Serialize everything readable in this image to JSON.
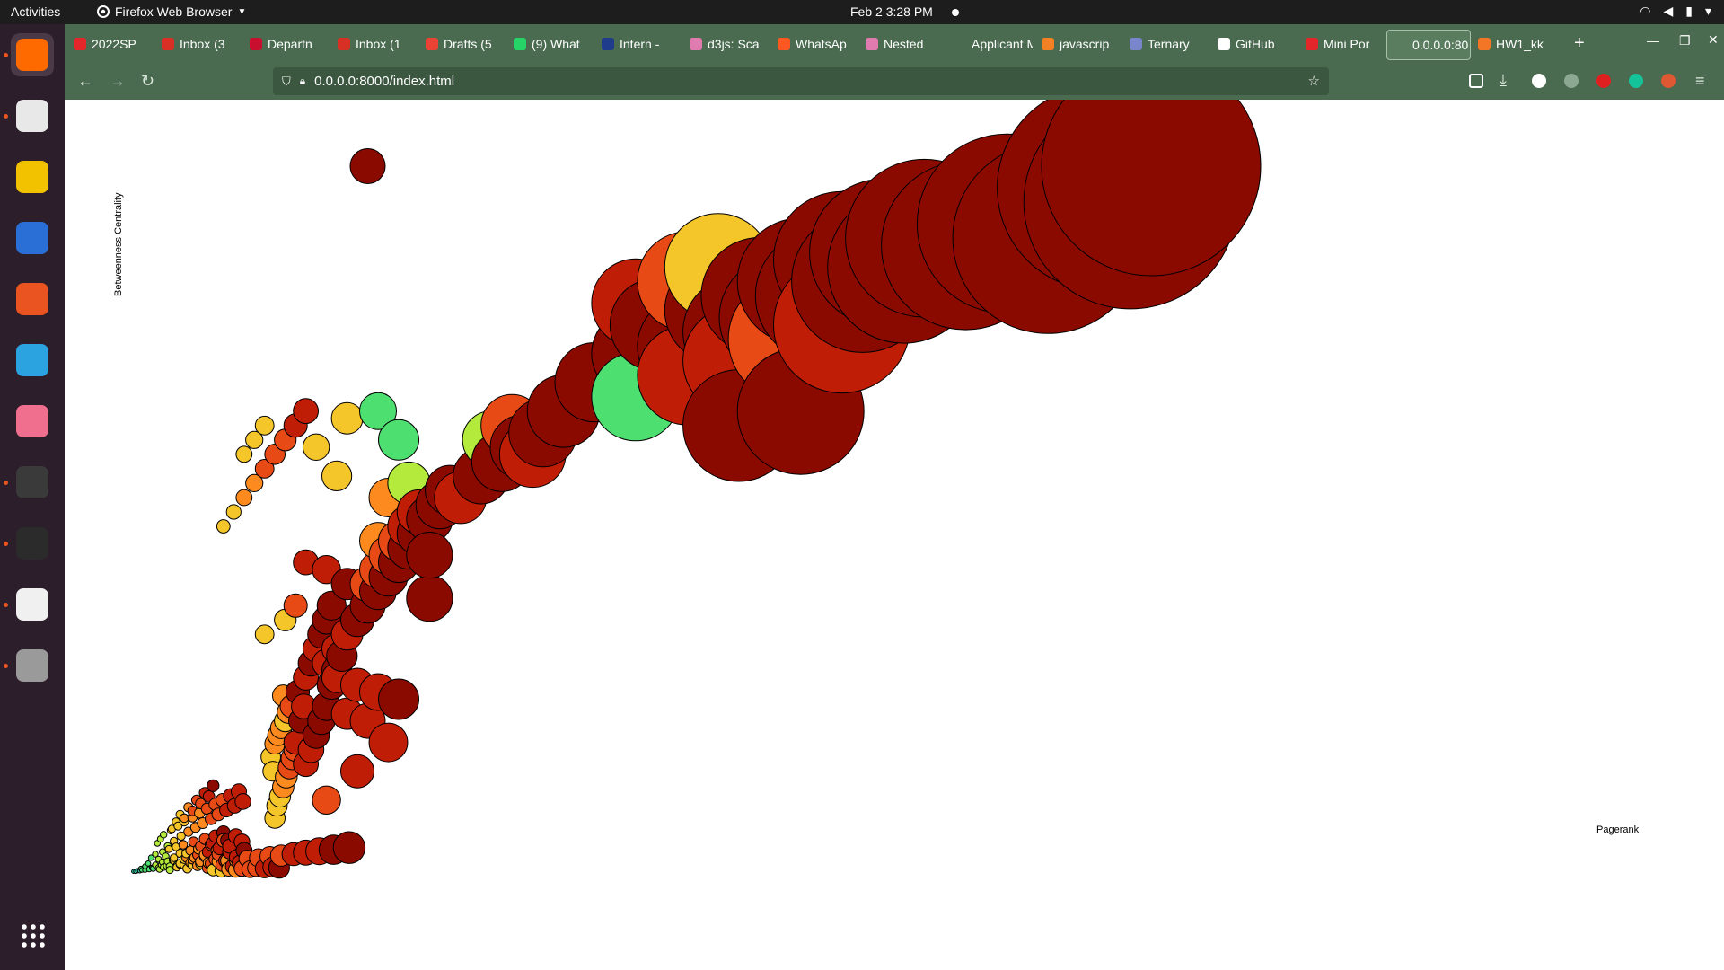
{
  "os_bar": {
    "activities": "Activities",
    "app_name": "Firefox Web Browser",
    "clock": "Feb 2  3:28 PM"
  },
  "dock": {
    "apps": [
      {
        "name": "firefox",
        "color": "#ff6a00",
        "running": true
      },
      {
        "name": "files",
        "color": "#e8e8e8",
        "running": true
      },
      {
        "name": "rhythmbox",
        "color": "#f2c200",
        "running": false
      },
      {
        "name": "writer",
        "color": "#2a6fd6",
        "running": false
      },
      {
        "name": "app-center",
        "color": "#e95420",
        "running": false
      },
      {
        "name": "telegram",
        "color": "#2aa3e0",
        "running": false
      },
      {
        "name": "chart-app",
        "color": "#f06f8e",
        "running": false
      },
      {
        "name": "sublime-text",
        "color": "#3a3a3a",
        "running": true
      },
      {
        "name": "terminal",
        "color": "#2b2b2b",
        "running": true
      },
      {
        "name": "document-viewer",
        "color": "#f0f0f0",
        "running": true
      },
      {
        "name": "disc",
        "color": "#9a9a9a",
        "running": true
      }
    ]
  },
  "browser": {
    "tabs": [
      {
        "label": "2022SP",
        "color": "#e3262a"
      },
      {
        "label": "Inbox (3",
        "color": "#d93025"
      },
      {
        "label": "Departn",
        "color": "#c8102e"
      },
      {
        "label": "Inbox (1",
        "color": "#d93025"
      },
      {
        "label": "Drafts (5",
        "color": "#ea4335"
      },
      {
        "label": "(9) What",
        "color": "#25d366"
      },
      {
        "label": "Intern - ",
        "color": "#1f3b8c"
      },
      {
        "label": "d3js: Sca",
        "color": "#e07bb0"
      },
      {
        "label": "WhatsAp",
        "color": "#ff5722"
      },
      {
        "label": "Nested ",
        "color": "#e07bb0"
      },
      {
        "label": "Applicant M",
        "color": "#4a6b50"
      },
      {
        "label": "javascrip",
        "color": "#f48024"
      },
      {
        "label": "Ternary",
        "color": "#7986cb"
      },
      {
        "label": "GitHub",
        "color": "#ffffff"
      },
      {
        "label": "Mini Por",
        "color": "#e3262a"
      },
      {
        "label": "0.0.0.0:80",
        "color": "#5a7d60"
      },
      {
        "label": "HW1_kk",
        "color": "#f37626"
      }
    ],
    "url": "0.0.0.0:8000/index.html"
  },
  "chart_data": {
    "type": "scatter",
    "xlabel": "Pagerank",
    "ylabel": "Betweenness Centrality",
    "size_encoding": "pagerank",
    "color_scale": [
      "#1f77b4",
      "#2bc5a6",
      "#4ddf70",
      "#b4ea3c",
      "#f5c62a",
      "#fd8a1e",
      "#e84a16",
      "#bf1d05",
      "#8b0a00"
    ],
    "points": [
      [
        0.013,
        0.001,
        0.11
      ],
      [
        0.015,
        0.001,
        0.13
      ],
      [
        0.017,
        0.002,
        0.15
      ],
      [
        0.019,
        0.002,
        0.18
      ],
      [
        0.021,
        0.003,
        0.2
      ],
      [
        0.024,
        0.003,
        0.23
      ],
      [
        0.028,
        0.004,
        0.26
      ],
      [
        0.032,
        0.005,
        0.29
      ],
      [
        0.037,
        0.006,
        0.33
      ],
      [
        0.042,
        0.007,
        0.36
      ],
      [
        0.048,
        0.008,
        0.4
      ],
      [
        0.055,
        0.009,
        0.43
      ],
      [
        0.062,
        0.01,
        0.47
      ],
      [
        0.07,
        0.011,
        0.5
      ],
      [
        0.078,
        0.012,
        0.53
      ],
      [
        0.086,
        0.013,
        0.57
      ],
      [
        0.095,
        0.015,
        0.61
      ],
      [
        0.104,
        0.016,
        0.64
      ],
      [
        0.113,
        0.017,
        0.67
      ],
      [
        0.123,
        0.019,
        0.71
      ],
      [
        0.134,
        0.02,
        0.74
      ],
      [
        0.145,
        0.022,
        0.78
      ],
      [
        0.156,
        0.023,
        0.81
      ],
      [
        0.168,
        0.025,
        0.85
      ],
      [
        0.18,
        0.027,
        0.88
      ],
      [
        0.193,
        0.029,
        0.92
      ],
      [
        0.207,
        0.031,
        0.95
      ],
      [
        0.222,
        0.034,
        0.98
      ],
      [
        0.09,
        0.003,
        0.5
      ],
      [
        0.098,
        0.002,
        0.55
      ],
      [
        0.105,
        0.004,
        0.6
      ],
      [
        0.112,
        0.003,
        0.65
      ],
      [
        0.118,
        0.005,
        0.7
      ],
      [
        0.126,
        0.004,
        0.75
      ],
      [
        0.132,
        0.006,
        0.8
      ],
      [
        0.14,
        0.005,
        0.85
      ],
      [
        0.148,
        0.007,
        0.9
      ],
      [
        0.154,
        0.006,
        0.95
      ],
      [
        0.02,
        0.005,
        0.2
      ],
      [
        0.024,
        0.008,
        0.22
      ],
      [
        0.027,
        0.012,
        0.25
      ],
      [
        0.031,
        0.006,
        0.3
      ],
      [
        0.034,
        0.01,
        0.32
      ],
      [
        0.038,
        0.004,
        0.35
      ],
      [
        0.041,
        0.014,
        0.38
      ],
      [
        0.045,
        0.009,
        0.4
      ],
      [
        0.048,
        0.003,
        0.42
      ],
      [
        0.052,
        0.016,
        0.45
      ],
      [
        0.055,
        0.007,
        0.47
      ],
      [
        0.058,
        0.011,
        0.5
      ],
      [
        0.062,
        0.018,
        0.52
      ],
      [
        0.065,
        0.005,
        0.55
      ],
      [
        0.068,
        0.013,
        0.57
      ],
      [
        0.072,
        0.02,
        0.6
      ],
      [
        0.075,
        0.009,
        0.62
      ],
      [
        0.078,
        0.015,
        0.65
      ],
      [
        0.082,
        0.022,
        0.67
      ],
      [
        0.085,
        0.006,
        0.7
      ],
      [
        0.088,
        0.012,
        0.72
      ],
      [
        0.092,
        0.018,
        0.75
      ],
      [
        0.095,
        0.025,
        0.78
      ],
      [
        0.099,
        0.01,
        0.8
      ],
      [
        0.102,
        0.016,
        0.83
      ],
      [
        0.106,
        0.028,
        0.86
      ],
      [
        0.109,
        0.008,
        0.88
      ],
      [
        0.113,
        0.021,
        0.9
      ],
      [
        0.116,
        0.013,
        0.93
      ],
      [
        0.12,
        0.03,
        0.96
      ],
      [
        0.03,
        0.02,
        0.3
      ],
      [
        0.034,
        0.025,
        0.33
      ],
      [
        0.037,
        0.018,
        0.36
      ],
      [
        0.041,
        0.028,
        0.4
      ],
      [
        0.044,
        0.022,
        0.43
      ],
      [
        0.047,
        0.032,
        0.46
      ],
      [
        0.051,
        0.017,
        0.5
      ],
      [
        0.054,
        0.035,
        0.53
      ],
      [
        0.058,
        0.026,
        0.56
      ],
      [
        0.061,
        0.038,
        0.6
      ],
      [
        0.064,
        0.02,
        0.63
      ],
      [
        0.068,
        0.03,
        0.66
      ],
      [
        0.071,
        0.042,
        0.7
      ],
      [
        0.075,
        0.024,
        0.73
      ],
      [
        0.078,
        0.036,
        0.76
      ],
      [
        0.082,
        0.046,
        0.8
      ],
      [
        0.085,
        0.028,
        0.83
      ],
      [
        0.089,
        0.04,
        0.86
      ],
      [
        0.092,
        0.05,
        0.9
      ],
      [
        0.096,
        0.033,
        0.93
      ],
      [
        0.1,
        0.055,
        0.96
      ],
      [
        0.104,
        0.044,
        0.98
      ],
      [
        0.036,
        0.04,
        0.35
      ],
      [
        0.039,
        0.046,
        0.38
      ],
      [
        0.042,
        0.052,
        0.4
      ],
      [
        0.046,
        0.036,
        0.43
      ],
      [
        0.049,
        0.058,
        0.45
      ],
      [
        0.052,
        0.043,
        0.48
      ],
      [
        0.056,
        0.064,
        0.5
      ],
      [
        0.059,
        0.05,
        0.53
      ],
      [
        0.062,
        0.07,
        0.55
      ],
      [
        0.066,
        0.056,
        0.58
      ],
      [
        0.07,
        0.076,
        0.6
      ],
      [
        0.073,
        0.062,
        0.63
      ],
      [
        0.077,
        0.082,
        0.65
      ],
      [
        0.08,
        0.068,
        0.68
      ],
      [
        0.084,
        0.088,
        0.7
      ],
      [
        0.088,
        0.074,
        0.73
      ],
      [
        0.092,
        0.094,
        0.75
      ],
      [
        0.095,
        0.08,
        0.78
      ],
      [
        0.099,
        0.1,
        0.8
      ],
      [
        0.103,
        0.086,
        0.83
      ],
      [
        0.107,
        0.106,
        0.86
      ],
      [
        0.111,
        0.092,
        0.88
      ],
      [
        0.115,
        0.112,
        0.9
      ],
      [
        0.119,
        0.098,
        0.93
      ],
      [
        0.05,
        0.06,
        0.45
      ],
      [
        0.054,
        0.07,
        0.5
      ],
      [
        0.058,
        0.08,
        0.55
      ],
      [
        0.062,
        0.075,
        0.6
      ],
      [
        0.066,
        0.09,
        0.65
      ],
      [
        0.07,
        0.085,
        0.7
      ],
      [
        0.074,
        0.1,
        0.75
      ],
      [
        0.078,
        0.095,
        0.8
      ],
      [
        0.082,
        0.11,
        0.85
      ],
      [
        0.086,
        0.105,
        0.9
      ],
      [
        0.09,
        0.12,
        0.95
      ],
      [
        0.04,
        0.01,
        0.38
      ],
      [
        0.046,
        0.015,
        0.42
      ],
      [
        0.052,
        0.02,
        0.46
      ],
      [
        0.058,
        0.012,
        0.5
      ],
      [
        0.064,
        0.026,
        0.54
      ],
      [
        0.07,
        0.018,
        0.58
      ],
      [
        0.076,
        0.032,
        0.62
      ],
      [
        0.082,
        0.024,
        0.66
      ],
      [
        0.088,
        0.038,
        0.7
      ],
      [
        0.094,
        0.03,
        0.74
      ],
      [
        0.1,
        0.044,
        0.78
      ],
      [
        0.106,
        0.036,
        0.82
      ],
      [
        0.112,
        0.05,
        0.86
      ],
      [
        0.118,
        0.042,
        0.9
      ],
      [
        0.15,
        0.075,
        0.45
      ],
      [
        0.152,
        0.092,
        0.5
      ],
      [
        0.155,
        0.105,
        0.55
      ],
      [
        0.158,
        0.118,
        0.6
      ],
      [
        0.161,
        0.132,
        0.65
      ],
      [
        0.164,
        0.145,
        0.7
      ],
      [
        0.167,
        0.158,
        0.75
      ],
      [
        0.17,
        0.17,
        0.8
      ],
      [
        0.148,
        0.14,
        0.55
      ],
      [
        0.146,
        0.16,
        0.5
      ],
      [
        0.15,
        0.178,
        0.6
      ],
      [
        0.153,
        0.19,
        0.65
      ],
      [
        0.156,
        0.2,
        0.62
      ],
      [
        0.16,
        0.21,
        0.55
      ],
      [
        0.163,
        0.222,
        0.58
      ],
      [
        0.166,
        0.23,
        0.7
      ],
      [
        0.158,
        0.245,
        0.6
      ],
      [
        0.17,
        0.18,
        0.92
      ],
      [
        0.175,
        0.21,
        0.94
      ],
      [
        0.178,
        0.23,
        0.9
      ],
      [
        0.172,
        0.25,
        0.95
      ],
      [
        0.18,
        0.27,
        0.93
      ],
      [
        0.185,
        0.29,
        0.96
      ],
      [
        0.19,
        0.31,
        0.92
      ],
      [
        0.195,
        0.33,
        0.97
      ],
      [
        0.2,
        0.35,
        0.95
      ],
      [
        0.205,
        0.37,
        0.98
      ],
      [
        0.18,
        0.15,
        0.9
      ],
      [
        0.185,
        0.17,
        0.92
      ],
      [
        0.19,
        0.19,
        0.94
      ],
      [
        0.195,
        0.21,
        0.96
      ],
      [
        0.2,
        0.23,
        0.97
      ],
      [
        0.205,
        0.26,
        0.98
      ],
      [
        0.21,
        0.28,
        0.96
      ],
      [
        0.215,
        0.3,
        0.98
      ],
      [
        0.21,
        0.31,
        0.9
      ],
      [
        0.22,
        0.33,
        0.92
      ],
      [
        0.23,
        0.35,
        0.94
      ],
      [
        0.24,
        0.37,
        0.96
      ],
      [
        0.25,
        0.39,
        0.97
      ],
      [
        0.26,
        0.41,
        0.98
      ],
      [
        0.27,
        0.43,
        0.96
      ],
      [
        0.28,
        0.45,
        0.98
      ],
      [
        0.29,
        0.47,
        0.97
      ],
      [
        0.3,
        0.49,
        0.98
      ],
      [
        0.31,
        0.51,
        0.96
      ],
      [
        0.32,
        0.53,
        0.98
      ],
      [
        0.24,
        0.4,
        0.8
      ],
      [
        0.25,
        0.42,
        0.75
      ],
      [
        0.26,
        0.44,
        0.7
      ],
      [
        0.27,
        0.46,
        0.72
      ],
      [
        0.28,
        0.48,
        0.85
      ],
      [
        0.29,
        0.5,
        0.82
      ],
      [
        0.33,
        0.52,
        0.9
      ],
      [
        0.35,
        0.55,
        0.94
      ],
      [
        0.37,
        0.57,
        0.96
      ],
      [
        0.39,
        0.59,
        0.98
      ],
      [
        0.41,
        0.61,
        0.97
      ],
      [
        0.43,
        0.64,
        0.99
      ],
      [
        0.36,
        0.6,
        0.4
      ],
      [
        0.38,
        0.62,
        0.75
      ],
      [
        0.4,
        0.58,
        0.82
      ],
      [
        0.2,
        0.29,
        0.85
      ],
      [
        0.21,
        0.27,
        0.88
      ],
      [
        0.23,
        0.26,
        0.9
      ],
      [
        0.25,
        0.25,
        0.93
      ],
      [
        0.27,
        0.24,
        0.95
      ],
      [
        0.22,
        0.22,
        0.87
      ],
      [
        0.24,
        0.21,
        0.9
      ],
      [
        0.25,
        0.46,
        0.6
      ],
      [
        0.2,
        0.1,
        0.7
      ],
      [
        0.23,
        0.14,
        0.85
      ],
      [
        0.26,
        0.18,
        0.92
      ],
      [
        0.3,
        0.38,
        0.95
      ],
      [
        0.3,
        0.44,
        0.94
      ],
      [
        0.26,
        0.52,
        0.65
      ],
      [
        0.28,
        0.54,
        0.4
      ],
      [
        0.27,
        0.6,
        0.25
      ],
      [
        0.25,
        0.64,
        0.3
      ],
      [
        0.21,
        0.55,
        0.45
      ],
      [
        0.19,
        0.59,
        0.5
      ],
      [
        0.22,
        0.63,
        0.5
      ],
      [
        0.2,
        0.42,
        0.92
      ],
      [
        0.22,
        0.4,
        0.94
      ],
      [
        0.18,
        0.43,
        0.85
      ],
      [
        0.17,
        0.37,
        0.78
      ],
      [
        0.16,
        0.35,
        0.55
      ],
      [
        0.14,
        0.33,
        0.5
      ],
      [
        0.46,
        0.68,
        0.99
      ],
      [
        0.5,
        0.72,
        0.99
      ],
      [
        0.52,
        0.76,
        0.97
      ],
      [
        0.55,
        0.73,
        0.99
      ],
      [
        0.58,
        0.78,
        0.99
      ],
      [
        0.6,
        0.75,
        0.99
      ],
      [
        0.62,
        0.8,
        0.99
      ],
      [
        0.64,
        0.77,
        0.99
      ],
      [
        0.66,
        0.82,
        0.99
      ],
      [
        0.68,
        0.8,
        0.99
      ],
      [
        0.7,
        0.85,
        0.99
      ],
      [
        0.72,
        0.82,
        0.99
      ],
      [
        0.74,
        0.86,
        0.99
      ],
      [
        0.76,
        0.84,
        0.99
      ],
      [
        0.78,
        0.88,
        0.99
      ],
      [
        0.5,
        0.66,
        0.3
      ],
      [
        0.55,
        0.69,
        0.85
      ],
      [
        0.6,
        0.71,
        0.82
      ],
      [
        0.65,
        0.74,
        0.78
      ],
      [
        0.7,
        0.76,
        0.9
      ],
      [
        0.82,
        0.87,
        0.99
      ],
      [
        0.86,
        0.9,
        0.99
      ],
      [
        0.9,
        0.88,
        0.99
      ],
      [
        0.95,
        0.95,
        0.99
      ],
      [
        1.0,
        0.98,
        0.99
      ],
      [
        0.98,
        0.93,
        0.99
      ],
      [
        0.5,
        0.79,
        0.85
      ],
      [
        0.55,
        0.82,
        0.8
      ],
      [
        0.6,
        0.62,
        0.95
      ],
      [
        0.66,
        0.64,
        0.97
      ],
      [
        0.58,
        0.84,
        0.5
      ],
      [
        0.1,
        0.48,
        0.5
      ],
      [
        0.11,
        0.5,
        0.55
      ],
      [
        0.12,
        0.52,
        0.6
      ],
      [
        0.13,
        0.54,
        0.65
      ],
      [
        0.14,
        0.56,
        0.7
      ],
      [
        0.15,
        0.58,
        0.75
      ],
      [
        0.16,
        0.6,
        0.8
      ],
      [
        0.17,
        0.62,
        0.85
      ],
      [
        0.18,
        0.64,
        0.9
      ],
      [
        0.12,
        0.58,
        0.45
      ],
      [
        0.13,
        0.6,
        0.5
      ],
      [
        0.14,
        0.62,
        0.55
      ],
      [
        0.24,
        0.98,
        0.98
      ]
    ]
  }
}
